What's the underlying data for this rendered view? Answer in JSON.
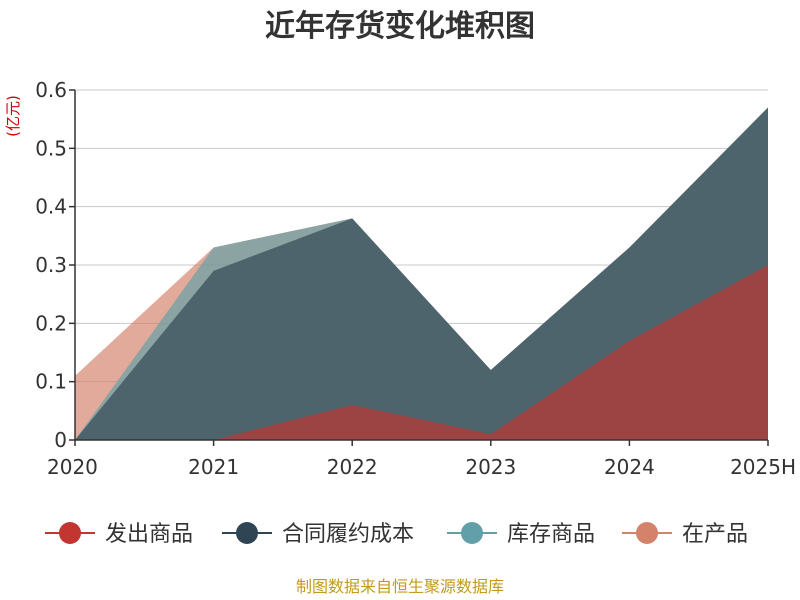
{
  "chart_data": {
    "type": "area",
    "title": "近年存货变化堆积图",
    "unit_label": "(亿元)",
    "categories": [
      "2020",
      "2021",
      "2022",
      "2023",
      "2024",
      "2025H"
    ],
    "ylim": [
      0,
      0.6
    ],
    "yticks": [
      "0",
      "0.1",
      "0.2",
      "0.3",
      "0.4",
      "0.5",
      "0.6"
    ],
    "grid": true,
    "legend_position": "bottom",
    "series": [
      {
        "name": "在产品",
        "color": "#d4826a",
        "values": [
          0.11,
          0.33,
          0.38,
          0.12,
          0.33,
          0.57
        ]
      },
      {
        "name": "库存商品",
        "color": "#61a0a8",
        "values": [
          0.0,
          0.33,
          0.38,
          0.12,
          0.33,
          0.57
        ]
      },
      {
        "name": "合同履约成本",
        "color": "#2f4554",
        "values": [
          0.0,
          0.29,
          0.38,
          0.12,
          0.33,
          0.57
        ]
      },
      {
        "name": "发出商品",
        "color": "#c23531",
        "values": [
          0.0,
          0.0,
          0.06,
          0.01,
          0.17,
          0.3
        ]
      }
    ],
    "legend_order": [
      "发出商品",
      "合同履约成本",
      "库存商品",
      "在产品"
    ]
  },
  "source_note": "制图数据来自恒生聚源数据库"
}
